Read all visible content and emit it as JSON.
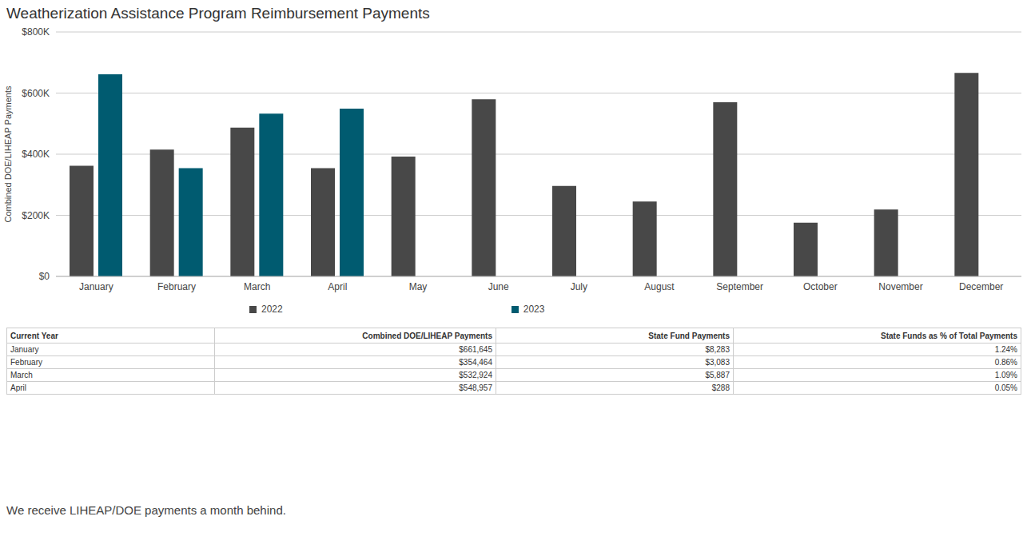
{
  "chart_data": {
    "type": "bar",
    "title": "Weatherization Assistance Program Reimbursement Payments",
    "y_label": "Combined DOE/LIHEAP Payments",
    "categories": [
      "January",
      "February",
      "March",
      "April",
      "May",
      "June",
      "July",
      "August",
      "September",
      "October",
      "November",
      "December"
    ],
    "series": [
      {
        "name": "2022",
        "color": "#484848",
        "values": [
          362000,
          415000,
          487000,
          354000,
          392000,
          580000,
          296000,
          245000,
          570000,
          176000,
          219000,
          666000
        ]
      },
      {
        "name": "2023",
        "color": "#005b70",
        "values": [
          661645,
          354464,
          532924,
          548957,
          null,
          null,
          null,
          null,
          null,
          null,
          null,
          null
        ]
      }
    ],
    "ylim": [
      0,
      800000
    ],
    "yticks": [
      {
        "value": 0,
        "label": "$0"
      },
      {
        "value": 200000,
        "label": "$200K"
      },
      {
        "value": 400000,
        "label": "$400K"
      },
      {
        "value": 600000,
        "label": "$600K"
      },
      {
        "value": 800000,
        "label": "$800K"
      }
    ],
    "grid": true,
    "legend": "bottom"
  },
  "table": {
    "columns": [
      "Current Year",
      "Combined DOE/LIHEAP Payments",
      "State Fund Payments",
      "State Funds as % of Total Payments"
    ],
    "rows": [
      [
        "January",
        "$661,645",
        "$8,283",
        "1.24%"
      ],
      [
        "February",
        "$354,464",
        "$3,083",
        "0.86%"
      ],
      [
        "March",
        "$532,924",
        "$5,887",
        "1.09%"
      ],
      [
        "April",
        "$548,957",
        "$288",
        "0.05%"
      ]
    ]
  },
  "note": "We receive LIHEAP/DOE payments a month behind."
}
